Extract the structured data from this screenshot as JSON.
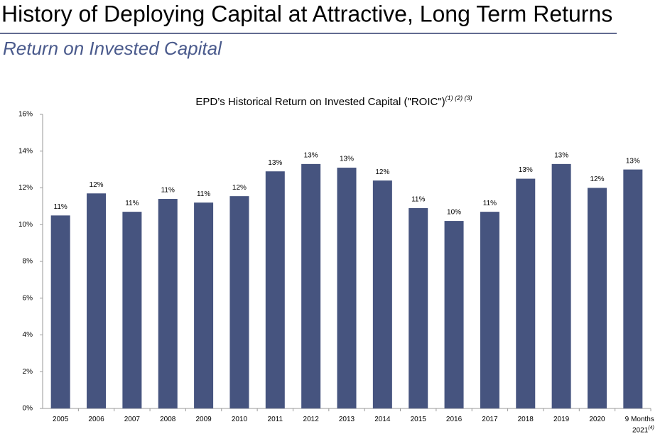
{
  "header": {
    "title": "History of Deploying Capital at Attractive, Long Term Returns",
    "subtitle": "Return on Invested Capital"
  },
  "chart_data": {
    "type": "bar",
    "title": "EPD’s Historical Return on Invested Capital (\"ROIC\")",
    "title_note": "(1) (2) (3)",
    "categories": [
      "2005",
      "2006",
      "2007",
      "2008",
      "2009",
      "2010",
      "2011",
      "2012",
      "2013",
      "2014",
      "2015",
      "2016",
      "2017",
      "2018",
      "2019",
      "2020",
      "9 Months 2021"
    ],
    "last_category_note": "(4)",
    "values": [
      10.5,
      11.7,
      10.7,
      11.4,
      11.2,
      11.55,
      12.9,
      13.3,
      13.1,
      12.4,
      10.9,
      10.2,
      10.7,
      12.5,
      13.3,
      12.0,
      13.0
    ],
    "value_labels": [
      "11%",
      "12%",
      "11%",
      "11%",
      "11%",
      "12%",
      "13%",
      "13%",
      "13%",
      "12%",
      "11%",
      "10%",
      "11%",
      "13%",
      "13%",
      "12%",
      "13%"
    ],
    "color": "#46547f",
    "ylim": [
      0,
      16
    ],
    "yticks": [
      {
        "value": 0,
        "label": "0%"
      },
      {
        "value": 2,
        "label": "2%"
      },
      {
        "value": 4,
        "label": "4%"
      },
      {
        "value": 6,
        "label": "6%"
      },
      {
        "value": 8,
        "label": "8%"
      },
      {
        "value": 10,
        "label": "10%"
      },
      {
        "value": 12,
        "label": "12%"
      },
      {
        "value": 14,
        "label": "14%"
      },
      {
        "value": 16,
        "label": "16%"
      }
    ]
  }
}
